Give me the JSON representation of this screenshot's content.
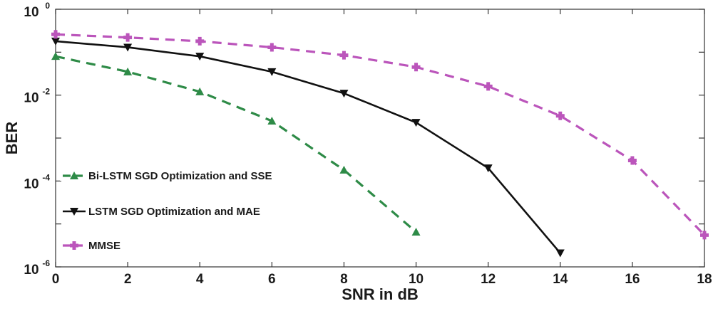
{
  "chart_data": {
    "type": "line",
    "xlabel": "SNR in dB",
    "ylabel": "BER",
    "xlim": [
      0,
      18
    ],
    "ylim": [
      1e-06,
      1
    ],
    "y_scale": "log",
    "x_ticks": [
      "0",
      "2",
      "4",
      "6",
      "8",
      "10",
      "12",
      "14",
      "16",
      "18"
    ],
    "y_ticks": [
      {
        "base": "10",
        "exp": "0"
      },
      {
        "base": "10",
        "exp": "-2"
      },
      {
        "base": "10",
        "exp": "-4"
      },
      {
        "base": "10",
        "exp": "-6"
      }
    ],
    "grid": false,
    "legend_position": "bottom-left",
    "series": [
      {
        "name": "Bi-LSTM SGD Optimization and SSE",
        "color": "#2e8b47",
        "line_style": "dashed",
        "marker": "triangle-up",
        "x": [
          0,
          2,
          4,
          6,
          8,
          10
        ],
        "y": [
          0.08,
          0.035,
          0.012,
          0.0025,
          0.00018,
          6.5e-06
        ]
      },
      {
        "name": "LSTM SGD Optimization and MAE",
        "color": "#111111",
        "line_style": "solid",
        "marker": "triangle-down",
        "x": [
          0,
          2,
          4,
          6,
          8,
          10,
          12,
          14
        ],
        "y": [
          0.18,
          0.13,
          0.08,
          0.035,
          0.011,
          0.0023,
          0.0002,
          2.1e-06
        ]
      },
      {
        "name": "MMSE",
        "color": "#bb55bb",
        "line_style": "dashed",
        "marker": "plus",
        "x": [
          0,
          2,
          4,
          6,
          8,
          10,
          12,
          14,
          16,
          18
        ],
        "y": [
          0.26,
          0.22,
          0.18,
          0.13,
          0.085,
          0.045,
          0.016,
          0.0033,
          0.0003,
          5.5e-06
        ]
      }
    ]
  }
}
